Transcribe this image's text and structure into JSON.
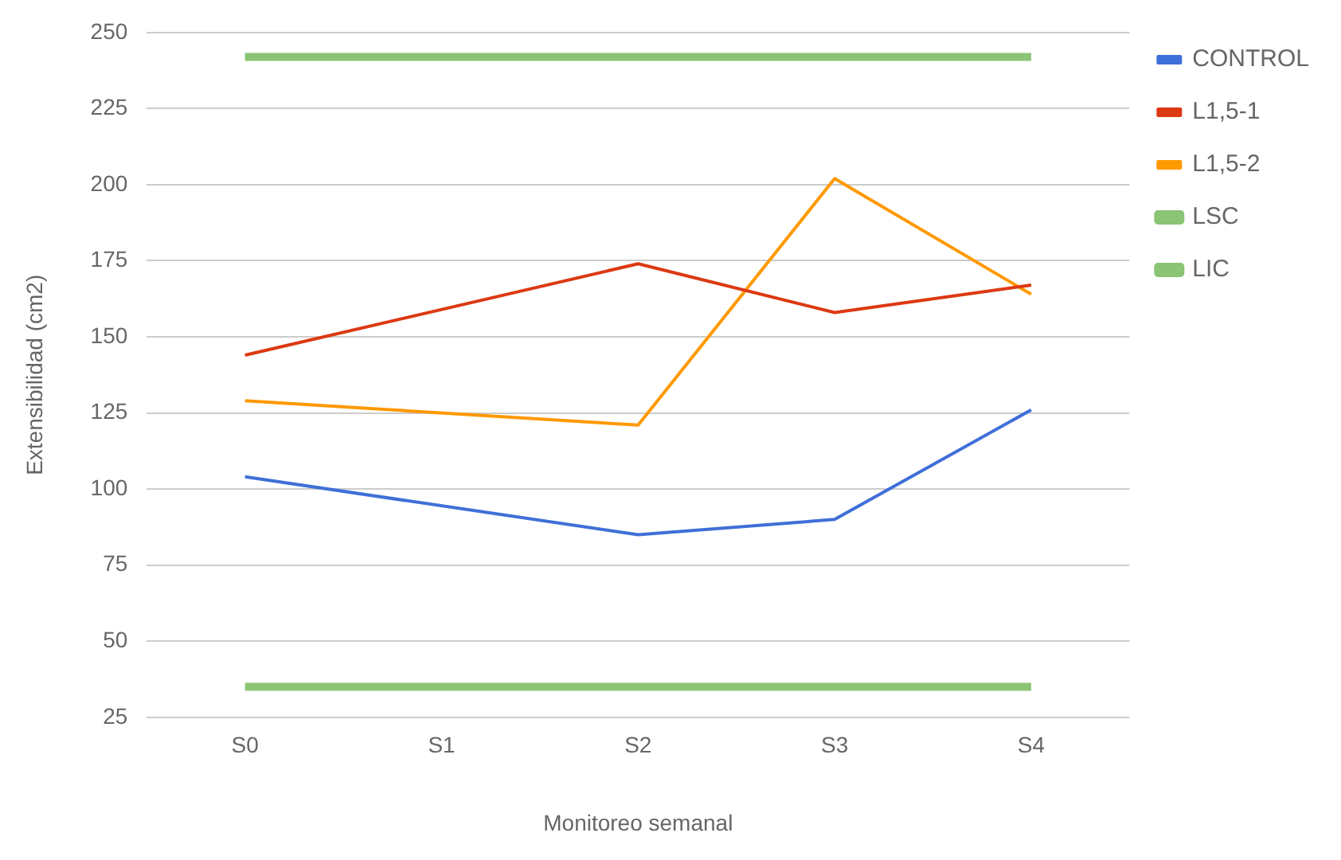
{
  "chart_data": {
    "type": "line",
    "xlabel": "Monitoreo semanal",
    "ylabel": "Extensibilidad (cm2)",
    "categories": [
      "S0",
      "S1",
      "S2",
      "S3",
      "S4"
    ],
    "series": [
      {
        "name": "CONTROL",
        "color": "#3f6fd8",
        "values": [
          104,
          null,
          85,
          90,
          126
        ]
      },
      {
        "name": "L1,5-1",
        "color": "#dc3912",
        "values": [
          144,
          null,
          174,
          158,
          167
        ]
      },
      {
        "name": "L1,5-2",
        "color": "#ff9900",
        "values": [
          129,
          null,
          121,
          202,
          164
        ]
      },
      {
        "name": "LSC",
        "color": "#8bc474",
        "values": [
          242,
          242,
          242,
          242,
          242
        ]
      },
      {
        "name": "LIC",
        "color": "#8bc474",
        "values": [
          35,
          35,
          35,
          35,
          35
        ]
      }
    ],
    "ylim": [
      25,
      250
    ],
    "yticks": [
      25,
      50,
      75,
      100,
      125,
      150,
      175,
      200,
      225,
      250
    ],
    "grid": "y",
    "legend": "right",
    "marker": "none",
    "line_style": "solid"
  }
}
